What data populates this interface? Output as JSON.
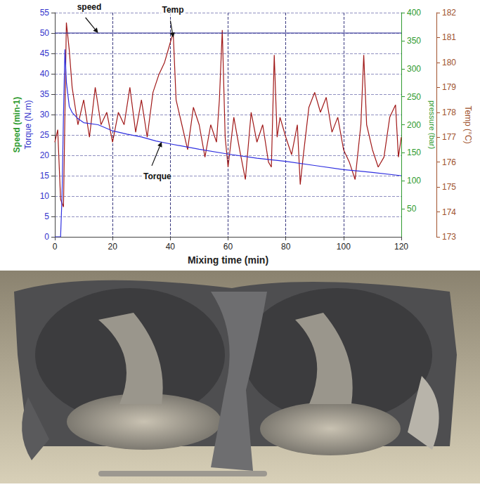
{
  "chart_data": {
    "type": "line",
    "x_label": "Mixing time (min)",
    "y_labels": [
      "Speed (min-1)",
      "Torque (N.m)"
    ],
    "y2_label": "Temp (°C)",
    "y3_label": "pressure (bar)",
    "xlim": [
      0,
      120
    ],
    "xticks": [
      0,
      20,
      40,
      60,
      80,
      100,
      120
    ],
    "ylim": [
      0,
      55
    ],
    "yticks": [
      0,
      5,
      10,
      15,
      20,
      25,
      30,
      35,
      40,
      45,
      50,
      55
    ],
    "y2lim": [
      173,
      182
    ],
    "y2ticks": [
      173,
      174,
      175,
      176,
      177,
      178,
      179,
      180,
      181,
      182
    ],
    "y3lim": [
      0,
      400
    ],
    "y3ticks": [
      50,
      100,
      150,
      200,
      250,
      300,
      350,
      400
    ],
    "grid": true,
    "series": [
      {
        "name": "speed",
        "color": "#23238f",
        "axis": "y",
        "x": [
          0,
          120
        ],
        "values": [
          50,
          50
        ]
      },
      {
        "name": "Torque",
        "color": "#2f2fe0",
        "axis": "y",
        "x": [
          0,
          1,
          2,
          2.5,
          3,
          3.5,
          4,
          5,
          6,
          8,
          10,
          15,
          20,
          25,
          30,
          35,
          40,
          50,
          60,
          70,
          80,
          90,
          100,
          110,
          120
        ],
        "values": [
          0,
          0,
          0,
          10,
          30,
          46,
          38,
          32,
          30.5,
          29,
          28,
          27.5,
          26,
          25.2,
          24.5,
          23.5,
          22.8,
          21.5,
          20.3,
          19.3,
          18.5,
          17.5,
          16.5,
          15.8,
          15
        ]
      },
      {
        "name": "Temp",
        "color": "#a01818",
        "axis": "y2",
        "x": [
          0,
          1,
          2,
          3,
          4,
          5,
          6,
          8,
          10,
          12,
          14,
          16,
          18,
          20,
          22,
          24,
          26,
          28,
          30,
          32,
          34,
          36,
          38,
          40,
          41,
          42,
          44,
          46,
          48,
          50,
          52,
          54,
          56,
          57,
          58,
          59,
          60,
          62,
          64,
          66,
          68,
          70,
          72,
          74,
          75,
          76,
          77,
          78,
          80,
          82,
          84,
          85,
          86,
          88,
          90,
          92,
          94,
          96,
          98,
          100,
          102,
          104,
          106,
          107,
          108,
          110,
          112,
          114,
          116,
          118,
          119,
          120
        ],
        "values": [
          176.8,
          177.3,
          174.5,
          174.2,
          181.6,
          180.5,
          179,
          177.5,
          178.5,
          177,
          179,
          177.5,
          178,
          176.8,
          178,
          177.5,
          179,
          177.2,
          178.5,
          177,
          178.8,
          179.5,
          180,
          180.8,
          181.2,
          178.5,
          177.5,
          176.5,
          178.2,
          177.5,
          176.2,
          177.5,
          176.8,
          178.5,
          181.3,
          177,
          175.8,
          177.8,
          176.5,
          175.3,
          178,
          176.8,
          177.5,
          176,
          175.8,
          180.3,
          177,
          177.8,
          177,
          176.3,
          177.5,
          175.1,
          176.2,
          178.2,
          178.8,
          178,
          178.6,
          177.2,
          177.8,
          176.5,
          176,
          175.3,
          177.5,
          180.3,
          177.5,
          176.5,
          175.8,
          176.2,
          177.8,
          178.3,
          176.2,
          177
        ]
      }
    ],
    "annotations": [
      {
        "text": "speed",
        "x": 15,
        "y": 50,
        "axis": "y"
      },
      {
        "text": "Temp",
        "x": 41,
        "y": 181,
        "axis": "y2"
      },
      {
        "text": "Torque",
        "x": 37,
        "y": 23.3,
        "axis": "y"
      }
    ]
  }
}
